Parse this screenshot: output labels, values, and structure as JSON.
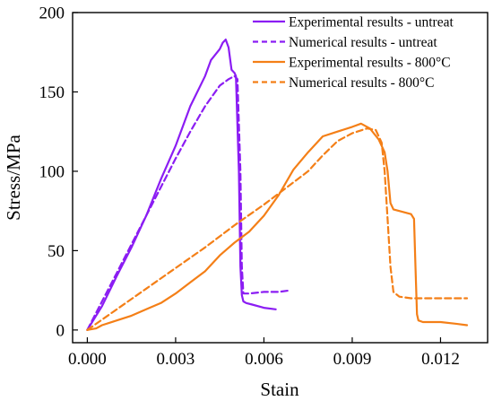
{
  "chart_data": {
    "type": "line",
    "title": "",
    "xlabel": "Stain",
    "ylabel": "Stress/MPa",
    "xlim": [
      -0.0005,
      0.0136
    ],
    "ylim": [
      -8,
      200
    ],
    "xticks": [
      0.0,
      0.003,
      0.006,
      0.009,
      0.012
    ],
    "xtick_labels": [
      "0.000",
      "0.003",
      "0.006",
      "0.009",
      "0.012"
    ],
    "yticks": [
      0,
      50,
      100,
      150,
      200
    ],
    "ytick_labels": [
      "0",
      "50",
      "100",
      "150",
      "200"
    ],
    "grid": false,
    "legend_position": "top-right",
    "series": [
      {
        "name": "Experimental results - untreat",
        "color": "#8B1DF3",
        "dash": "solid",
        "x": [
          0.0,
          0.0005,
          0.001,
          0.0015,
          0.002,
          0.0025,
          0.003,
          0.0035,
          0.004,
          0.0042,
          0.0045,
          0.0046,
          0.0047,
          0.0048,
          0.0049,
          0.005,
          0.00505,
          0.00515,
          0.0052,
          0.00525,
          0.0053,
          0.0054,
          0.0056,
          0.006,
          0.0064
        ],
        "y": [
          0,
          15,
          34,
          52,
          72,
          95,
          116,
          141,
          160,
          170,
          177,
          181,
          183,
          178,
          164,
          162,
          160,
          100,
          40,
          22,
          18,
          17,
          16,
          14,
          13
        ]
      },
      {
        "name": "Numerical results - untreat",
        "color": "#8B1DF3",
        "dash": "dashed",
        "x": [
          0.0,
          0.0005,
          0.001,
          0.0015,
          0.002,
          0.0025,
          0.003,
          0.0035,
          0.004,
          0.0045,
          0.0048,
          0.005,
          0.0051,
          0.0052,
          0.00525,
          0.0053,
          0.0055,
          0.006,
          0.0065,
          0.0069
        ],
        "y": [
          0,
          18,
          36,
          54,
          72,
          90,
          108,
          125,
          141,
          154,
          158,
          160,
          158,
          100,
          40,
          23,
          23,
          24,
          24,
          25
        ]
      },
      {
        "name": "Experimental results - 800°C",
        "color": "#F47F17",
        "dash": "solid",
        "x": [
          0.0,
          0.0003,
          0.0005,
          0.001,
          0.0015,
          0.002,
          0.0025,
          0.003,
          0.0035,
          0.004,
          0.0045,
          0.005,
          0.0055,
          0.006,
          0.0065,
          0.007,
          0.0075,
          0.008,
          0.0085,
          0.009,
          0.0093,
          0.0096,
          0.0099,
          0.0101,
          0.0102,
          0.0103,
          0.0104,
          0.0106,
          0.0108,
          0.011,
          0.0111,
          0.01115,
          0.0112,
          0.01125,
          0.0114,
          0.012,
          0.0125,
          0.0129
        ],
        "y": [
          0,
          1,
          3,
          6,
          9,
          13,
          17,
          23,
          30,
          37,
          47,
          55,
          62,
          72,
          85,
          101,
          112,
          122,
          125,
          128,
          130,
          127,
          120,
          112,
          100,
          80,
          76,
          75,
          74,
          73,
          70,
          40,
          10,
          6,
          5,
          5,
          4,
          3
        ]
      },
      {
        "name": "Numerical results - 800°C",
        "color": "#F47F17",
        "dash": "dashed",
        "x": [
          0.0,
          0.001,
          0.002,
          0.003,
          0.004,
          0.005,
          0.006,
          0.007,
          0.0075,
          0.008,
          0.0085,
          0.009,
          0.0095,
          0.0098,
          0.01,
          0.0101,
          0.0102,
          0.0103,
          0.0104,
          0.0106,
          0.011,
          0.012,
          0.0129
        ],
        "y": [
          0,
          13,
          26,
          39,
          52,
          66,
          79,
          93,
          100,
          110,
          119,
          124,
          127,
          126,
          118,
          100,
          70,
          40,
          24,
          21,
          20,
          20,
          20
        ]
      }
    ]
  }
}
